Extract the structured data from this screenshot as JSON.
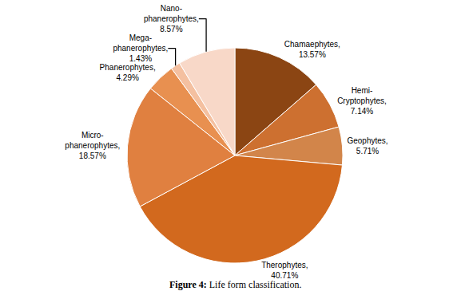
{
  "chart_data": {
    "type": "pie",
    "title": "Figure 4: Life form classification.",
    "values": [
      13.57,
      7.14,
      5.71,
      40.71,
      18.57,
      4.29,
      1.43,
      8.57
    ],
    "annotations": [
      "Chamaephytes,\n13.57%",
      "Hemi-\nCryptophytes,\n7.14%",
      "Geophytes,\n5.71%",
      "Therophytes,\n40.71%",
      "Micro-\nphanerophytes,\n18.57%",
      "Phanerophytes,\n4.29%",
      "Mega-\nphanerophytes,\n1.43%",
      "Nano-\nphanerophytes,\n8.57%"
    ],
    "colors": [
      "#8B4513",
      "#CD7030",
      "#D2854A",
      "#D2691E",
      "#E08040",
      "#E89050",
      "#F4C0A0",
      "#F8D8C8"
    ]
  }
}
